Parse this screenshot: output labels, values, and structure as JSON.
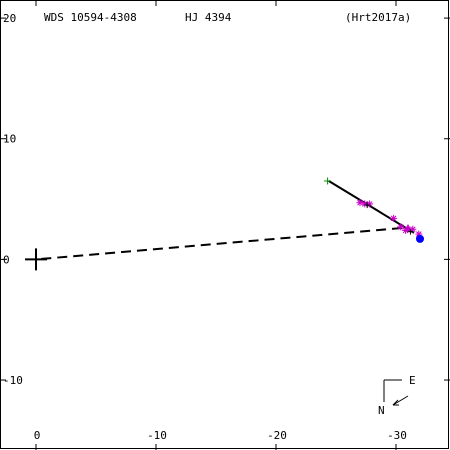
{
  "header": {
    "wds_id": "WDS 10594-4308",
    "discoverer": "HJ 4394",
    "reference": "(Hrt2017a)"
  },
  "compass": {
    "east_label": "E",
    "north_label": "N"
  },
  "chart_data": {
    "type": "scatter",
    "title": "",
    "xlabel": "",
    "ylabel": "",
    "xlim": [
      3,
      -34.5
    ],
    "ylim": [
      -15.8,
      21.5
    ],
    "x_ticks": [
      -30,
      -20,
      -10,
      0
    ],
    "y_ticks": [
      20,
      10,
      0,
      -10
    ],
    "grid": false,
    "primary_star": {
      "x": 0,
      "y": 0
    },
    "orbit_fit": {
      "x": [
        -31.5,
        -24.4
      ],
      "y": [
        2.2,
        6.5
      ]
    },
    "first_observation": {
      "x": -24.3,
      "y": 6.5
    },
    "last_observation": {
      "x": -32.0,
      "y": 1.7
    },
    "residual_line": {
      "x": [
        -30.5,
        0
      ],
      "y": [
        2.6,
        0
      ]
    },
    "measurements": [
      {
        "x": -31.9,
        "y": 2.1,
        "symbol": "star"
      },
      {
        "x": -31.4,
        "y": 2.5,
        "symbol": "star"
      },
      {
        "x": -31.0,
        "y": 2.6,
        "symbol": "triangle"
      },
      {
        "x": -30.8,
        "y": 2.4,
        "symbol": "star"
      },
      {
        "x": -30.4,
        "y": 2.7,
        "symbol": "star"
      },
      {
        "x": -29.8,
        "y": 3.4,
        "symbol": "star"
      },
      {
        "x": -27.8,
        "y": 4.6,
        "symbol": "star"
      },
      {
        "x": -27.4,
        "y": 4.6,
        "symbol": "star"
      },
      {
        "x": -27.0,
        "y": 4.7,
        "symbol": "star"
      },
      {
        "x": -31.2,
        "y": 2.3,
        "symbol": "plus"
      },
      {
        "x": -27.6,
        "y": 4.5,
        "symbol": "plus"
      }
    ],
    "colors": {
      "axis": "#000000",
      "orbit": "#000000",
      "first": "#008800",
      "last": "#0000ff",
      "measurement": "#cc00cc"
    }
  }
}
